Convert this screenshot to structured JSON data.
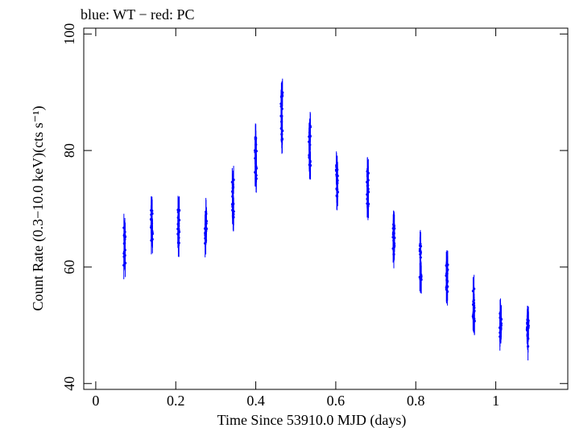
{
  "chart_data": {
    "type": "scatter",
    "title": "blue: WT − red: PC",
    "xlabel": "Time Since 53910.0 MJD (days)",
    "ylabel": "Count Rate (0.3−10.0 keV)(cts s⁻¹)",
    "xlim": [
      -0.03,
      1.18
    ],
    "ylim": [
      39,
      101
    ],
    "x_ticks": [
      0,
      0.2,
      0.4,
      0.6,
      0.8,
      1
    ],
    "x_tick_labels": [
      "0",
      "0.2",
      "0.4",
      "0.6",
      "0.8",
      "1"
    ],
    "y_ticks": [
      40,
      60,
      80,
      100
    ],
    "y_tick_labels": [
      "40",
      "60",
      "80",
      "100"
    ],
    "grid": false,
    "legend": "none",
    "series": [
      {
        "name": "WT",
        "color": "#0000ff",
        "error_bar_half_width": 2.4,
        "points_per_snapshot": 18,
        "snapshots": [
          {
            "x": 0.072,
            "y_center": 63.8,
            "y_spread": 5.0
          },
          {
            "x": 0.14,
            "y_center": 67.0,
            "y_spread": 4.6
          },
          {
            "x": 0.207,
            "y_center": 67.0,
            "y_spread": 4.6
          },
          {
            "x": 0.275,
            "y_center": 66.5,
            "y_spread": 5.2
          },
          {
            "x": 0.343,
            "y_center": 71.5,
            "y_spread": 5.0
          },
          {
            "x": 0.4,
            "y_center": 79.0,
            "y_spread": 5.5
          },
          {
            "x": 0.465,
            "y_center": 86.0,
            "y_spread": 6.0
          },
          {
            "x": 0.535,
            "y_center": 81.0,
            "y_spread": 5.5
          },
          {
            "x": 0.603,
            "y_center": 74.0,
            "y_spread": 5.0
          },
          {
            "x": 0.68,
            "y_center": 73.0,
            "y_spread": 5.0
          },
          {
            "x": 0.745,
            "y_center": 65.5,
            "y_spread": 5.0
          },
          {
            "x": 0.812,
            "y_center": 61.0,
            "y_spread": 4.6
          },
          {
            "x": 0.878,
            "y_center": 58.0,
            "y_spread": 3.6
          },
          {
            "x": 0.945,
            "y_center": 53.5,
            "y_spread": 4.0
          },
          {
            "x": 1.012,
            "y_center": 50.0,
            "y_spread": 3.4
          },
          {
            "x": 1.08,
            "y_center": 48.5,
            "y_spread": 3.6
          }
        ]
      }
    ]
  }
}
